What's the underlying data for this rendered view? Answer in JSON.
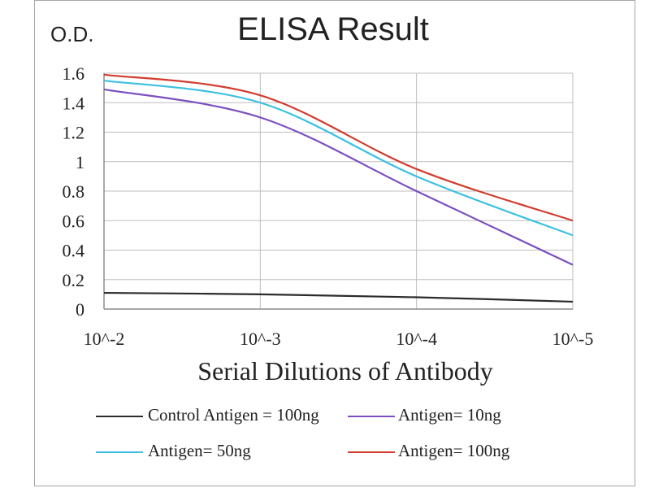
{
  "chart_data": {
    "type": "line",
    "title": "ELISA Result",
    "ylabel": "O.D.",
    "xlabel": "Serial Dilutions  of Antibody",
    "categories": [
      "10^-2",
      "10^-3",
      "10^-4",
      "10^-5"
    ],
    "x": [
      0,
      1,
      2,
      3
    ],
    "ylim": [
      0,
      1.6
    ],
    "yticks": [
      "0",
      "0.2",
      "0.4",
      "0.6",
      "0.8",
      "1",
      "1.2",
      "1.4",
      "1.6"
    ],
    "grid": true,
    "legend_position": "bottom",
    "series": [
      {
        "name": "Control Antigen = 100ng",
        "color": "#2b2b2b",
        "values": [
          0.11,
          0.1,
          0.08,
          0.05
        ]
      },
      {
        "name": "Antigen= 10ng",
        "color": "#7b4fbf",
        "values": [
          1.49,
          1.3,
          0.8,
          0.3
        ]
      },
      {
        "name": "Antigen= 50ng",
        "color": "#3cc0e0",
        "values": [
          1.55,
          1.4,
          0.9,
          0.5
        ]
      },
      {
        "name": "Antigen= 100ng",
        "color": "#d23c2e",
        "values": [
          1.59,
          1.45,
          0.95,
          0.6
        ]
      }
    ]
  }
}
